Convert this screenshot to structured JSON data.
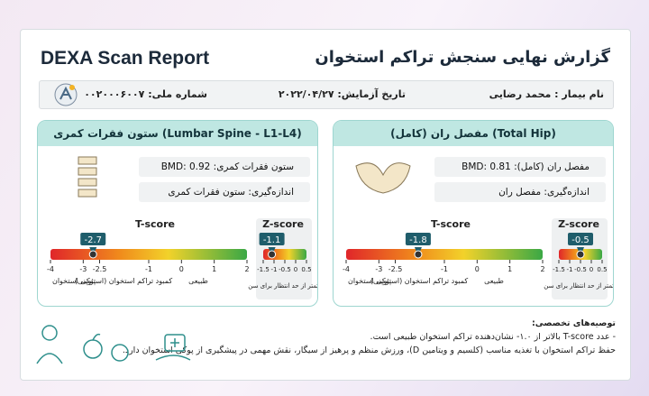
{
  "header": {
    "title_en": "DEXA Scan Report",
    "title_fa": "گزارش نهایی سنجش تراکم استخوان"
  },
  "patient": {
    "name": "نام بیمار : محمد رضایی",
    "date": "تاریخ آزمایش: ۲۰۲۲/۰۴/۲۷",
    "national_id": "شماره ملی: ۰۰۲۰۰۰۶۰۰۷"
  },
  "panels": [
    {
      "title": "مفصل ران (کامل) (Total Hip)",
      "bmd": "مفصل ران (کامل): BMD: 0.81 g/cm²",
      "measured": "اندازه‌گیری: مفصل ران",
      "t_score": {
        "label": "T-score",
        "value": -1.8,
        "ticks": [
          -4,
          -3,
          -2.5,
          -1,
          0,
          1,
          2
        ]
      },
      "z_score": {
        "label": "Z-score",
        "value": -0.5,
        "ticks": [
          -1.5,
          -1,
          -0.5,
          0,
          0.5
        ]
      }
    },
    {
      "title": "ستون فقرات کمری (Lumbar Spine - L1-L4)",
      "bmd": "ستون فقرات کمری: BMD: 0.92 g/cm²",
      "measured": "اندازه‌گیری: ستون فقرات کمری",
      "t_score": {
        "label": "T-score",
        "value": -2.7,
        "ticks": [
          -4,
          -3,
          -2.5,
          -1,
          0,
          1,
          2
        ]
      },
      "z_score": {
        "label": "Z-score",
        "value": -1.1,
        "ticks": [
          -1.5,
          -1,
          -0.5,
          0,
          0.5
        ]
      }
    }
  ],
  "t_categories": [
    "پوکی استخوان",
    "کمبود تراکم استخوان (استئوپنی)",
    "طبیعی"
  ],
  "z_caption": "کمتر از حد انتظار برای سن",
  "recommendations": {
    "title": "توصیه‌های تخصصی:",
    "items": [
      "- عدد T-score بالاتر از ۱.۰- نشان‌دهنده تراکم استخوان طبیعی است.",
      "حفظ تراکم استخوان با تغذیه مناسب (کلسیم و ویتامین D)، ورزش منظم و پرهیز از سیگار، نقش مهمی در پیشگیری از پوکی استخوان دارد."
    ]
  }
}
